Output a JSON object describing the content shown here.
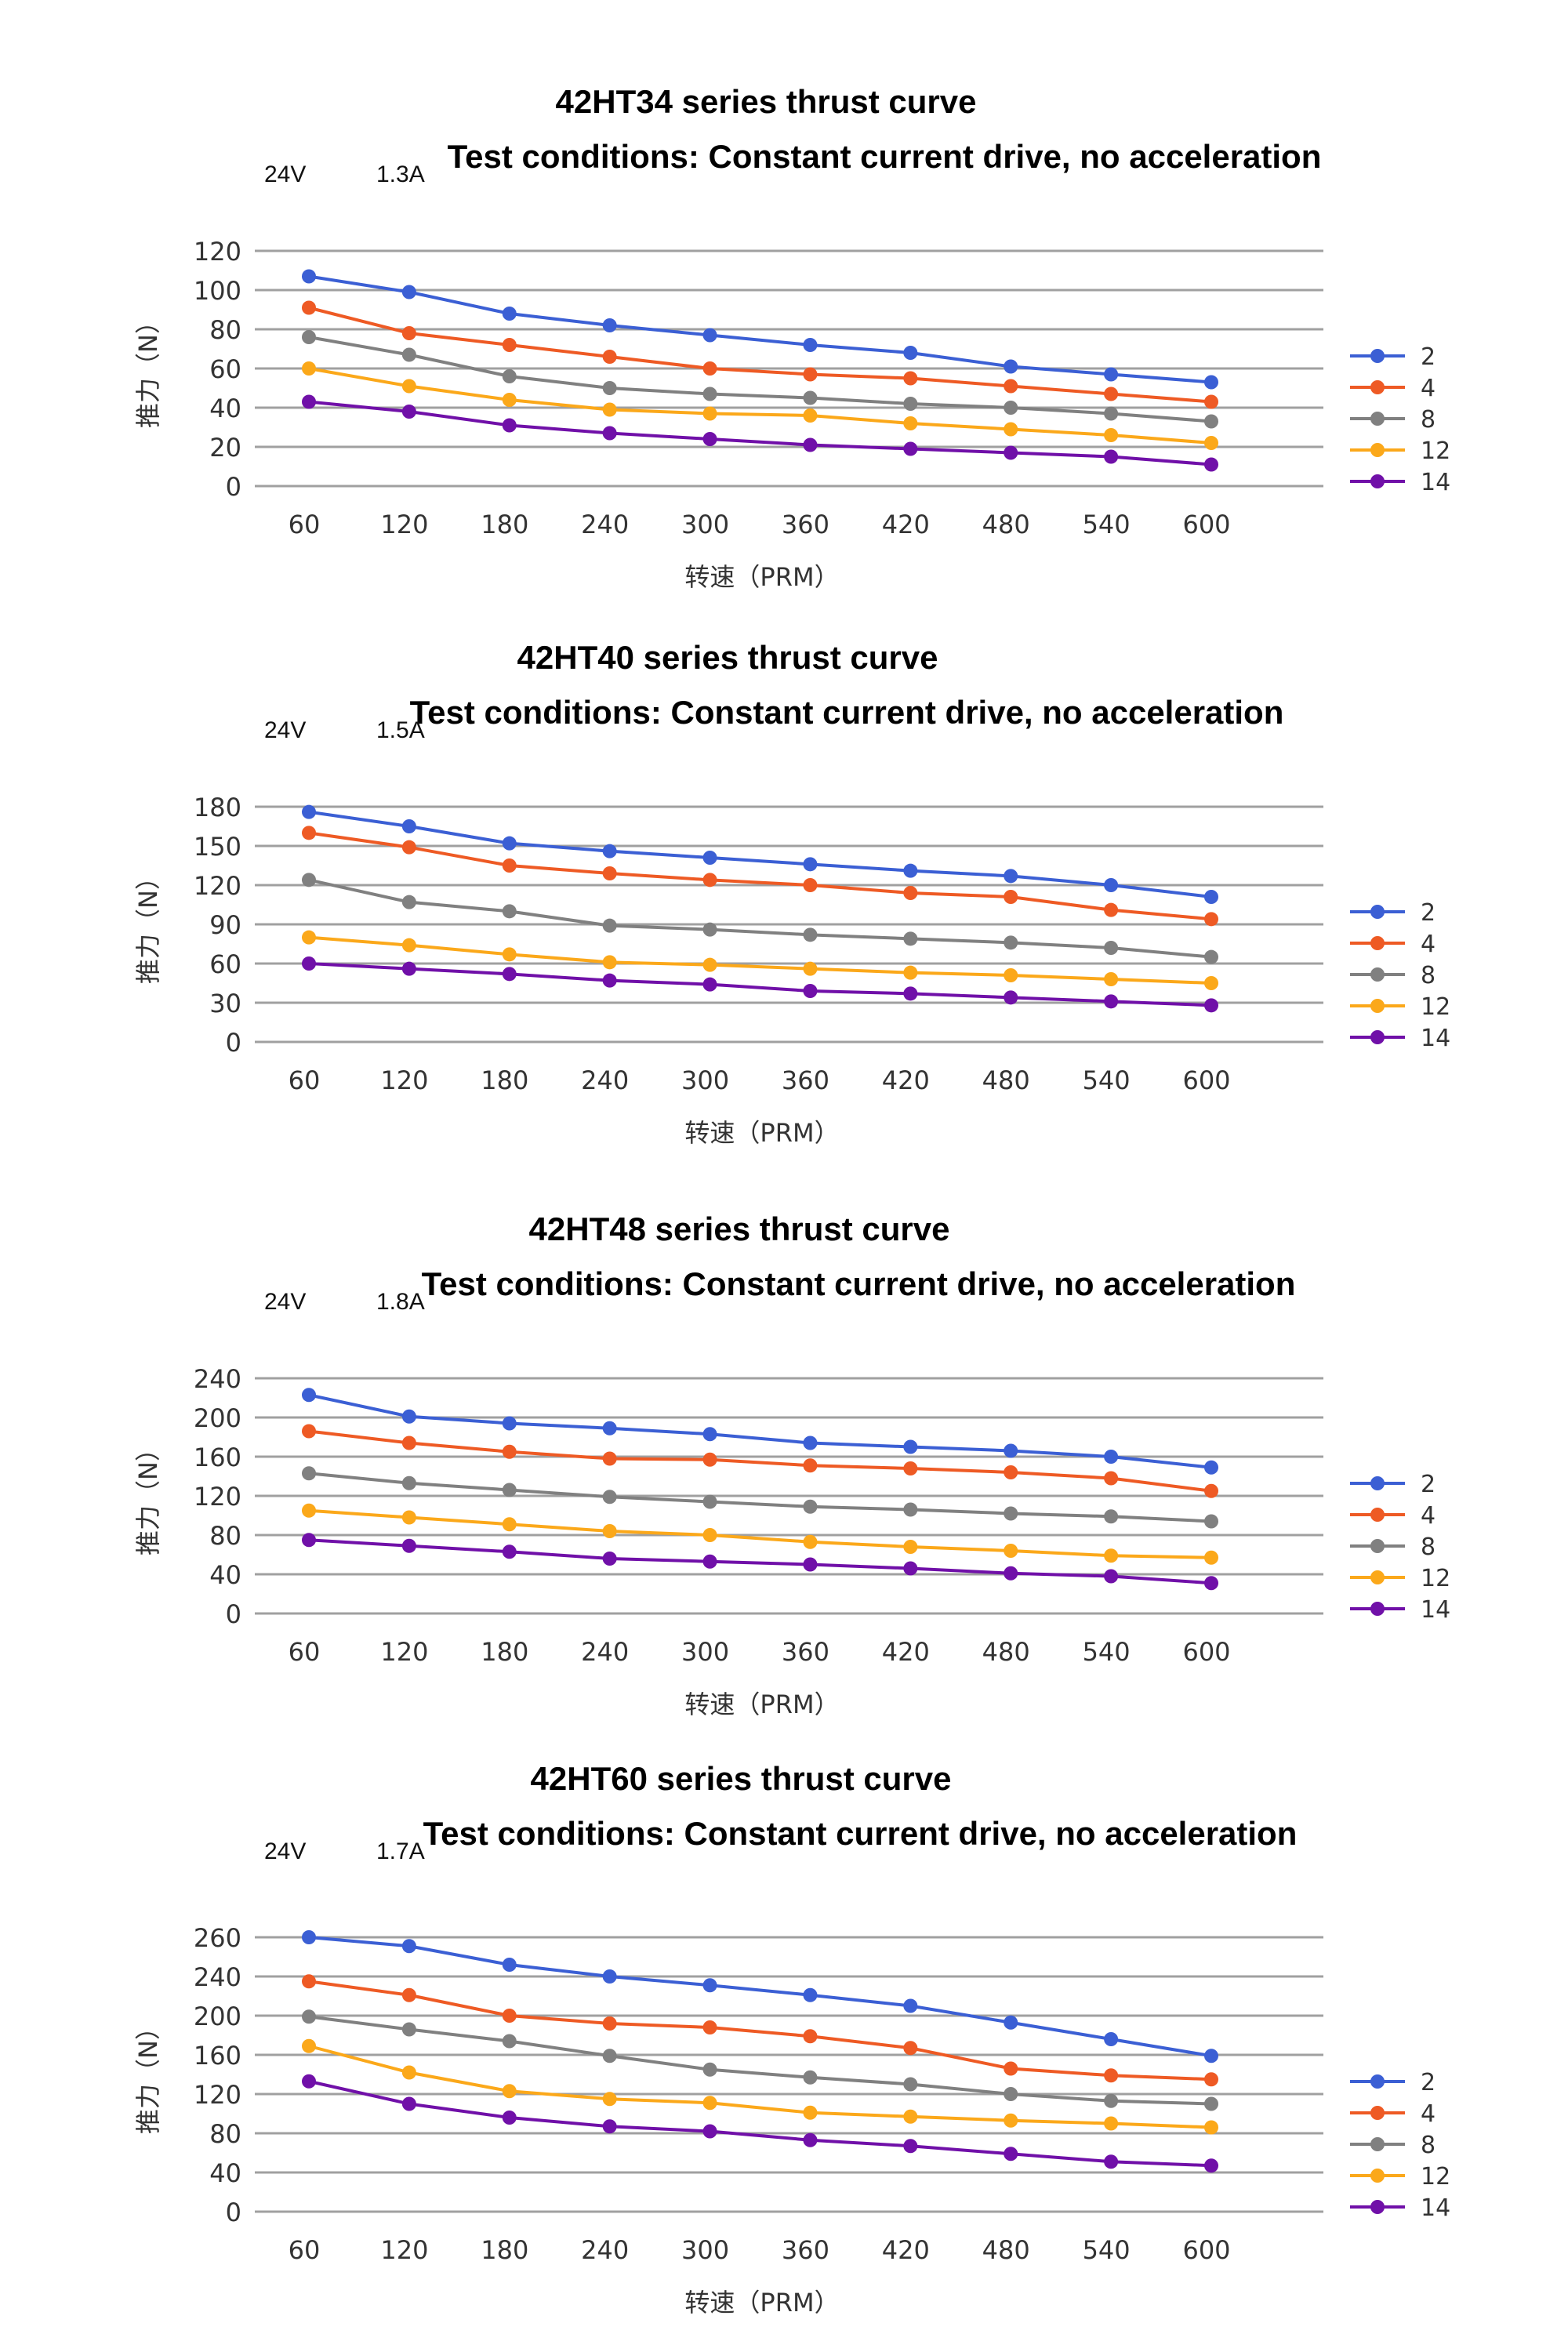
{
  "chart_data": [
    {
      "type": "line",
      "title": "42HT34 series thrust curve",
      "subtitle": "Test conditions: Constant current drive, no acceleration",
      "voltage": "24V",
      "current": "1.3A",
      "xlabel": "转速（PRM）",
      "ylabel": "推力（N）",
      "ylim": [
        0,
        120
      ],
      "yticks": [
        "0",
        "20",
        "40",
        "60",
        "80",
        "100",
        "120"
      ],
      "categories": [
        "60",
        "120",
        "180",
        "240",
        "300",
        "360",
        "420",
        "480",
        "540",
        "600"
      ],
      "grid": true,
      "legend": "right",
      "series": [
        {
          "name": "2",
          "color": "#3b5fd4",
          "values": [
            107,
            99,
            88,
            82,
            77,
            72,
            68,
            61,
            57,
            53
          ]
        },
        {
          "name": "4",
          "color": "#ee5a24",
          "values": [
            91,
            78,
            72,
            66,
            60,
            57,
            55,
            51,
            47,
            43
          ]
        },
        {
          "name": "8",
          "color": "#808080",
          "values": [
            76,
            67,
            56,
            50,
            47,
            45,
            42,
            40,
            37,
            33
          ]
        },
        {
          "name": "12",
          "color": "#fba81a",
          "values": [
            60,
            51,
            44,
            39,
            37,
            36,
            32,
            29,
            26,
            22
          ]
        },
        {
          "name": "14",
          "color": "#7010a8",
          "values": [
            43,
            38,
            31,
            27,
            24,
            21,
            19,
            17,
            15,
            11
          ]
        }
      ]
    },
    {
      "type": "line",
      "title": "42HT40 series thrust curve",
      "subtitle": "Test conditions: Constant current drive, no acceleration",
      "voltage": "24V",
      "current": "1.5A",
      "xlabel": "转速（PRM）",
      "ylabel": "推力（N）",
      "ylim": [
        0,
        180
      ],
      "yticks": [
        "0",
        "30",
        "60",
        "90",
        "120",
        "150",
        "180"
      ],
      "categories": [
        "60",
        "120",
        "180",
        "240",
        "300",
        "360",
        "420",
        "480",
        "540",
        "600"
      ],
      "grid": true,
      "legend": "right",
      "series": [
        {
          "name": "2",
          "color": "#3b5fd4",
          "values": [
            176,
            165,
            152,
            146,
            141,
            136,
            131,
            127,
            120,
            111
          ]
        },
        {
          "name": "4",
          "color": "#ee5a24",
          "values": [
            160,
            149,
            135,
            129,
            124,
            120,
            114,
            111,
            101,
            94
          ]
        },
        {
          "name": "8",
          "color": "#808080",
          "values": [
            124,
            107,
            100,
            89,
            86,
            82,
            79,
            76,
            72,
            65
          ]
        },
        {
          "name": "12",
          "color": "#fba81a",
          "values": [
            80,
            74,
            67,
            61,
            59,
            56,
            53,
            51,
            48,
            45
          ]
        },
        {
          "name": "14",
          "color": "#7010a8",
          "values": [
            60,
            56,
            52,
            47,
            44,
            39,
            37,
            34,
            31,
            28
          ]
        }
      ]
    },
    {
      "type": "line",
      "title": "42HT48 series thrust curve",
      "subtitle": "Test conditions: Constant current drive, no acceleration",
      "voltage": "24V",
      "current": "1.8A",
      "xlabel": "转速（PRM）",
      "ylabel": "推力（N）",
      "ylim": [
        0,
        240
      ],
      "yticks": [
        "0",
        "40",
        "80",
        "120",
        "160",
        "200",
        "240"
      ],
      "categories": [
        "60",
        "120",
        "180",
        "240",
        "300",
        "360",
        "420",
        "480",
        "540",
        "600"
      ],
      "grid": true,
      "legend": "right",
      "series": [
        {
          "name": "2",
          "color": "#3b5fd4",
          "values": [
            223,
            201,
            194,
            189,
            183,
            174,
            170,
            166,
            160,
            149
          ]
        },
        {
          "name": "4",
          "color": "#ee5a24",
          "values": [
            186,
            174,
            165,
            158,
            157,
            151,
            148,
            144,
            138,
            125
          ]
        },
        {
          "name": "8",
          "color": "#808080",
          "values": [
            143,
            133,
            126,
            119,
            114,
            109,
            106,
            102,
            99,
            94
          ]
        },
        {
          "name": "12",
          "color": "#fba81a",
          "values": [
            105,
            98,
            91,
            84,
            80,
            73,
            68,
            64,
            59,
            57
          ]
        },
        {
          "name": "14",
          "color": "#7010a8",
          "values": [
            75,
            69,
            63,
            56,
            53,
            50,
            46,
            41,
            38,
            31
          ]
        }
      ]
    },
    {
      "type": "line",
      "title": "42HT60 series thrust curve",
      "subtitle": "Test conditions: Constant current drive, no acceleration",
      "voltage": "24V",
      "current": "1.7A",
      "xlabel": "转速（PRM）",
      "ylabel": "推力（N）",
      "ylim": [
        0,
        280
      ],
      "yticks": [
        "0",
        "40",
        "80",
        "120",
        "160",
        "200",
        "240",
        "260"
      ],
      "categories": [
        "60",
        "120",
        "180",
        "240",
        "300",
        "360",
        "420",
        "480",
        "540",
        "600"
      ],
      "grid": true,
      "legend": "right",
      "series": [
        {
          "name": "2",
          "color": "#3b5fd4",
          "values": [
            280,
            271,
            252,
            240,
            231,
            221,
            210,
            193,
            176,
            159
          ]
        },
        {
          "name": "4",
          "color": "#ee5a24",
          "values": [
            235,
            221,
            200,
            192,
            188,
            179,
            167,
            146,
            139,
            135
          ]
        },
        {
          "name": "8",
          "color": "#808080",
          "values": [
            199,
            186,
            174,
            159,
            145,
            137,
            130,
            120,
            113,
            110
          ]
        },
        {
          "name": "12",
          "color": "#fba81a",
          "values": [
            169,
            142,
            123,
            115,
            111,
            101,
            97,
            93,
            90,
            86
          ]
        },
        {
          "name": "14",
          "color": "#7010a8",
          "values": [
            133,
            110,
            96,
            87,
            82,
            73,
            67,
            59,
            51,
            47
          ]
        }
      ]
    }
  ]
}
